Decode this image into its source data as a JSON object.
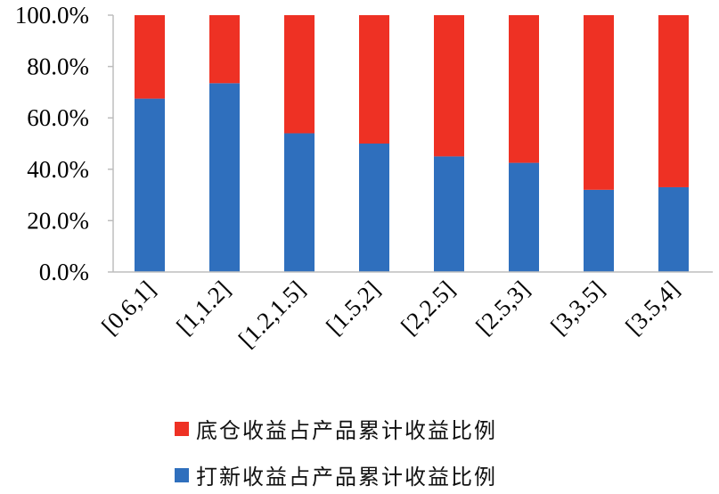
{
  "colors": {
    "blue": "#2f6fbd",
    "red": "#ee3124",
    "axis": "#bdbdbd"
  },
  "chart_data": {
    "type": "bar",
    "stacked": true,
    "categories": [
      "[0.6,1]",
      "[1,1.2]",
      "[1.2,1.5]",
      "[1.5,2]",
      "[2,2.5]",
      "[2.5,3]",
      "[3,3.5]",
      "[3.5,4]"
    ],
    "series": [
      {
        "name": "打新收益占产品累计收益比例",
        "values": [
          67.5,
          73.5,
          54.0,
          50.0,
          45.0,
          42.5,
          32.0,
          33.0
        ],
        "color": "#2f6fbd"
      },
      {
        "name": "底仓收益占产品累计收益比例",
        "values": [
          32.5,
          26.5,
          46.0,
          50.0,
          55.0,
          57.5,
          68.0,
          67.0
        ],
        "color": "#ee3124"
      }
    ],
    "yticks": [
      "0.0%",
      "20.0%",
      "40.0%",
      "60.0%",
      "80.0%",
      "100.0%"
    ],
    "ylim": [
      0,
      100
    ],
    "grid": false,
    "legend_position": "bottom"
  },
  "legend": [
    {
      "label": "底仓收益占产品累计收益比例",
      "color": "#ee3124"
    },
    {
      "label": "打新收益占产品累计收益比例",
      "color": "#2f6fbd"
    }
  ]
}
